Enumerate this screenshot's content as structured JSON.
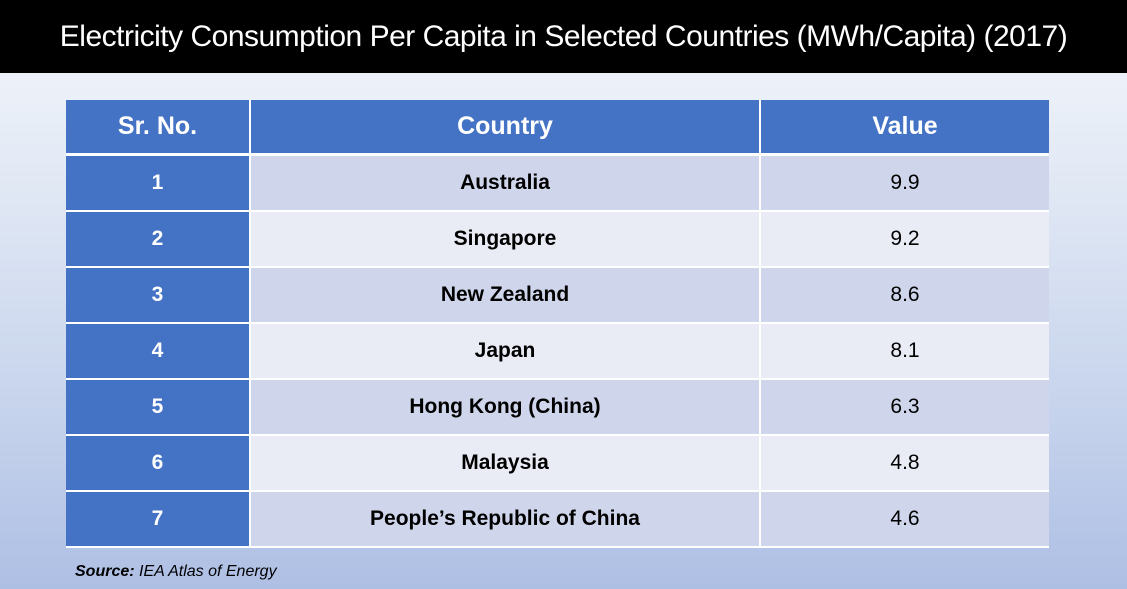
{
  "title": "Electricity Consumption Per Capita in Selected Countries (MWh/Capita) (2017)",
  "table": {
    "headers": [
      "Sr. No.",
      "Country",
      "Value"
    ],
    "rows": [
      {
        "sr": "1",
        "country": "Australia",
        "value": "9.9"
      },
      {
        "sr": "2",
        "country": "Singapore",
        "value": "9.2"
      },
      {
        "sr": "3",
        "country": "New Zealand",
        "value": "8.6"
      },
      {
        "sr": "4",
        "country": "Japan",
        "value": "8.1"
      },
      {
        "sr": "5",
        "country": "Hong Kong (China)",
        "value": "6.3"
      },
      {
        "sr": "6",
        "country": "Malaysia",
        "value": "4.8"
      },
      {
        "sr": "7",
        "country": "People’s Republic of China",
        "value": "4.6"
      }
    ]
  },
  "source": {
    "label": "Source:",
    "text": "IEA Atlas of Energy"
  },
  "colors": {
    "header_blue": "#4472c4",
    "row_dark": "#cfd5ea",
    "row_light": "#e9ebf5",
    "title_background": "#000000"
  }
}
